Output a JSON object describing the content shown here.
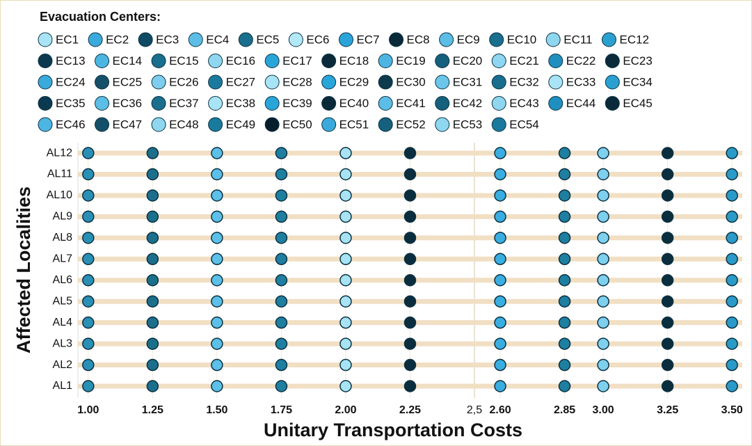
{
  "chart_data": {
    "type": "dot",
    "legend_title": "Evacuation Centers:",
    "xlabel": "Unitary Transportation Costs",
    "ylabel": "Affected Localities",
    "legend": [
      {
        "name": "EC1",
        "color": "#a8e4f5"
      },
      {
        "name": "EC2",
        "color": "#3aaadc"
      },
      {
        "name": "EC3",
        "color": "#0e4a63"
      },
      {
        "name": "EC4",
        "color": "#5cbde6"
      },
      {
        "name": "EC5",
        "color": "#1a6e8e"
      },
      {
        "name": "EC6",
        "color": "#b2e8f7"
      },
      {
        "name": "EC7",
        "color": "#2aa5da"
      },
      {
        "name": "EC8",
        "color": "#0a2a3a"
      },
      {
        "name": "EC9",
        "color": "#5cbde6"
      },
      {
        "name": "EC10",
        "color": "#1a6e8e"
      },
      {
        "name": "EC11",
        "color": "#8fd6f0"
      },
      {
        "name": "EC12",
        "color": "#2aa0d0"
      },
      {
        "name": "EC13",
        "color": "#0b3a50"
      },
      {
        "name": "EC14",
        "color": "#4db5e2"
      },
      {
        "name": "EC15",
        "color": "#1a6e8e"
      },
      {
        "name": "EC16",
        "color": "#8fd6f0"
      },
      {
        "name": "EC17",
        "color": "#2aa5da"
      },
      {
        "name": "EC18",
        "color": "#0a2a3a"
      },
      {
        "name": "EC19",
        "color": "#4db5e2"
      },
      {
        "name": "EC20",
        "color": "#15607d"
      },
      {
        "name": "EC21",
        "color": "#8fd6f0"
      },
      {
        "name": "EC22",
        "color": "#1f8fbf"
      },
      {
        "name": "EC23",
        "color": "#0a2a3a"
      },
      {
        "name": "EC24",
        "color": "#3aaadc"
      },
      {
        "name": "EC25",
        "color": "#15506a"
      },
      {
        "name": "EC26",
        "color": "#7fcdee"
      },
      {
        "name": "EC27",
        "color": "#1a7a9e"
      },
      {
        "name": "EC28",
        "color": "#a8e4f5"
      },
      {
        "name": "EC29",
        "color": "#2aa5da"
      },
      {
        "name": "EC30",
        "color": "#0e3a4e"
      },
      {
        "name": "EC31",
        "color": "#6cc6ea"
      },
      {
        "name": "EC32",
        "color": "#1a6e8e"
      },
      {
        "name": "EC33",
        "color": "#a8e4f5"
      },
      {
        "name": "EC34",
        "color": "#2aa0d0"
      },
      {
        "name": "EC35",
        "color": "#0b3a50"
      },
      {
        "name": "EC36",
        "color": "#5cbde6"
      },
      {
        "name": "EC37",
        "color": "#1a6e8e"
      },
      {
        "name": "EC38",
        "color": "#a8e4f5"
      },
      {
        "name": "EC39",
        "color": "#2aa5da"
      },
      {
        "name": "EC40",
        "color": "#0a2a3a"
      },
      {
        "name": "EC41",
        "color": "#5cbde6"
      },
      {
        "name": "EC42",
        "color": "#15607d"
      },
      {
        "name": "EC43",
        "color": "#8fd6f0"
      },
      {
        "name": "EC44",
        "color": "#1f8fbf"
      },
      {
        "name": "EC45",
        "color": "#0a2a3a"
      },
      {
        "name": "EC46",
        "color": "#4db5e2"
      },
      {
        "name": "EC47",
        "color": "#15506a"
      },
      {
        "name": "EC48",
        "color": "#8fd6f0"
      },
      {
        "name": "EC49",
        "color": "#1a7a9e"
      },
      {
        "name": "EC50",
        "color": "#071e2b"
      },
      {
        "name": "EC51",
        "color": "#3aaadc"
      },
      {
        "name": "EC52",
        "color": "#15607d"
      },
      {
        "name": "EC53",
        "color": "#8fd6f0"
      },
      {
        "name": "EC54",
        "color": "#1a7a9e"
      }
    ],
    "categories": [
      "AL1",
      "AL2",
      "AL3",
      "AL4",
      "AL5",
      "AL6",
      "AL7",
      "AL8",
      "AL9",
      "AL10",
      "AL11",
      "AL12"
    ],
    "point_colors": [
      "#2a8fb5",
      "#1b6f8c",
      "#5cc0e8",
      "#1f7fa0",
      "#a7e3f5",
      "#0b2e3f",
      "#3aaee0",
      "#1f7fa0",
      "#7fd0ef",
      "#0b2e3f",
      "#2a9bc8"
    ],
    "points": [
      [
        1,
        1.25,
        1.5,
        1.75,
        2,
        2.25,
        2.6,
        2.85,
        3,
        3.25,
        3.5
      ],
      [
        1,
        1.25,
        1.5,
        1.75,
        2,
        2.25,
        2.6,
        2.85,
        3,
        3.25,
        3.5
      ],
      [
        1,
        1.25,
        1.5,
        1.75,
        2,
        2.25,
        2.6,
        2.85,
        3,
        3.25,
        3.5
      ],
      [
        1,
        1.25,
        1.5,
        1.75,
        2,
        2.25,
        2.6,
        2.85,
        3,
        3.25,
        3.5
      ],
      [
        1,
        1.25,
        1.5,
        1.75,
        2,
        2.25,
        2.6,
        2.85,
        3,
        3.25,
        3.5
      ],
      [
        1,
        1.25,
        1.5,
        1.75,
        2,
        2.25,
        2.6,
        2.85,
        3,
        3.25,
        3.5
      ],
      [
        1,
        1.25,
        1.5,
        1.75,
        2,
        2.25,
        2.6,
        2.85,
        3,
        3.25,
        3.5
      ],
      [
        1,
        1.25,
        1.5,
        1.75,
        2,
        2.25,
        2.6,
        2.85,
        3,
        3.25,
        3.5
      ],
      [
        1,
        1.25,
        1.5,
        1.75,
        2,
        2.25,
        2.6,
        2.85,
        3,
        3.25,
        3.5
      ],
      [
        1,
        1.25,
        1.5,
        1.75,
        2,
        2.25,
        2.6,
        2.85,
        3,
        3.25,
        3.5
      ],
      [
        1,
        1.25,
        1.5,
        1.75,
        2,
        2.25,
        2.6,
        2.85,
        3,
        3.25,
        3.5
      ],
      [
        1,
        1.25,
        1.5,
        1.75,
        2,
        2.25,
        2.6,
        2.85,
        3,
        3.25,
        3.5
      ]
    ],
    "xlim": [
      0.96,
      3.54
    ],
    "xticks": [
      {
        "value": 1,
        "label": "1.00"
      },
      {
        "value": 1.25,
        "label": "1.25"
      },
      {
        "value": 1.5,
        "label": "1.50"
      },
      {
        "value": 1.75,
        "label": "1.75"
      },
      {
        "value": 2,
        "label": "2.00"
      },
      {
        "value": 2.25,
        "label": "2.25"
      },
      {
        "value": 2.5,
        "label": "2,5"
      },
      {
        "value": 2.6,
        "label": "2.60"
      },
      {
        "value": 2.85,
        "label": "2.85"
      },
      {
        "value": 3,
        "label": "3.00"
      },
      {
        "value": 3.25,
        "label": "3.25"
      },
      {
        "value": 3.5,
        "label": "3.50"
      }
    ],
    "reference_x": 2.5,
    "grid": true
  }
}
